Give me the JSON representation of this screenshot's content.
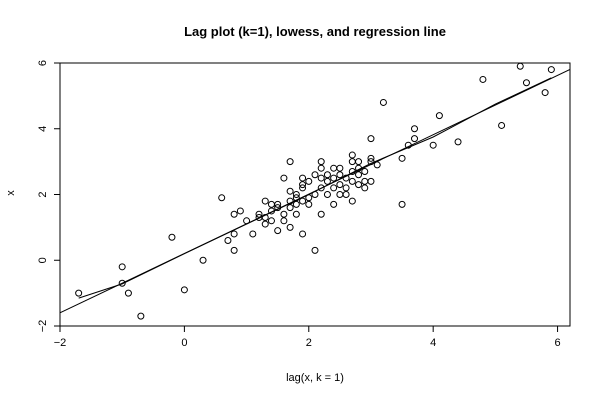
{
  "chart_data": {
    "type": "scatter",
    "title": "Lag plot (k=1), lowess, and regression line",
    "xlabel": "lag(x, k = 1)",
    "ylabel": "x",
    "xlim": [
      -2,
      6.2
    ],
    "ylim": [
      -2,
      6
    ],
    "xticks": [
      -2,
      0,
      2,
      4,
      6
    ],
    "yticks": [
      -2,
      0,
      2,
      4,
      6
    ],
    "grid": false,
    "point_style": "open-circle",
    "points": [
      {
        "x": -1.7,
        "y": -1.0
      },
      {
        "x": -1.0,
        "y": -0.2
      },
      {
        "x": -1.0,
        "y": -0.7
      },
      {
        "x": -0.9,
        "y": -1.0
      },
      {
        "x": -0.7,
        "y": -1.7
      },
      {
        "x": -0.2,
        "y": 0.7
      },
      {
        "x": 0.0,
        "y": -0.9
      },
      {
        "x": 0.3,
        "y": 0.0
      },
      {
        "x": 0.6,
        "y": 1.9
      },
      {
        "x": 0.7,
        "y": 0.6
      },
      {
        "x": 0.8,
        "y": 0.3
      },
      {
        "x": 0.8,
        "y": 0.8
      },
      {
        "x": 0.8,
        "y": 1.4
      },
      {
        "x": 0.9,
        "y": 1.5
      },
      {
        "x": 1.0,
        "y": 1.2
      },
      {
        "x": 1.1,
        "y": 0.8
      },
      {
        "x": 1.2,
        "y": 1.3
      },
      {
        "x": 1.2,
        "y": 1.4
      },
      {
        "x": 1.3,
        "y": 1.1
      },
      {
        "x": 1.3,
        "y": 1.3
      },
      {
        "x": 1.3,
        "y": 1.8
      },
      {
        "x": 1.4,
        "y": 1.2
      },
      {
        "x": 1.4,
        "y": 1.5
      },
      {
        "x": 1.4,
        "y": 1.7
      },
      {
        "x": 1.5,
        "y": 0.9
      },
      {
        "x": 1.5,
        "y": 1.6
      },
      {
        "x": 1.5,
        "y": 1.7
      },
      {
        "x": 1.6,
        "y": 1.2
      },
      {
        "x": 1.6,
        "y": 1.4
      },
      {
        "x": 1.6,
        "y": 2.5
      },
      {
        "x": 1.7,
        "y": 1.0
      },
      {
        "x": 1.7,
        "y": 1.6
      },
      {
        "x": 1.7,
        "y": 1.8
      },
      {
        "x": 1.7,
        "y": 2.1
      },
      {
        "x": 1.7,
        "y": 3.0
      },
      {
        "x": 1.8,
        "y": 1.4
      },
      {
        "x": 1.8,
        "y": 1.7
      },
      {
        "x": 1.8,
        "y": 1.9
      },
      {
        "x": 1.8,
        "y": 2.0
      },
      {
        "x": 1.9,
        "y": 0.8
      },
      {
        "x": 1.9,
        "y": 1.8
      },
      {
        "x": 1.9,
        "y": 2.2
      },
      {
        "x": 1.9,
        "y": 2.3
      },
      {
        "x": 1.9,
        "y": 2.5
      },
      {
        "x": 2.0,
        "y": 1.7
      },
      {
        "x": 2.0,
        "y": 1.9
      },
      {
        "x": 2.0,
        "y": 2.4
      },
      {
        "x": 2.1,
        "y": 0.3
      },
      {
        "x": 2.1,
        "y": 2.0
      },
      {
        "x": 2.1,
        "y": 2.6
      },
      {
        "x": 2.2,
        "y": 1.4
      },
      {
        "x": 2.2,
        "y": 2.2
      },
      {
        "x": 2.2,
        "y": 2.5
      },
      {
        "x": 2.2,
        "y": 2.8
      },
      {
        "x": 2.2,
        "y": 3.0
      },
      {
        "x": 2.3,
        "y": 2.0
      },
      {
        "x": 2.3,
        "y": 2.4
      },
      {
        "x": 2.3,
        "y": 2.6
      },
      {
        "x": 2.4,
        "y": 1.7
      },
      {
        "x": 2.4,
        "y": 2.2
      },
      {
        "x": 2.4,
        "y": 2.5
      },
      {
        "x": 2.4,
        "y": 2.8
      },
      {
        "x": 2.5,
        "y": 2.0
      },
      {
        "x": 2.5,
        "y": 2.3
      },
      {
        "x": 2.5,
        "y": 2.6
      },
      {
        "x": 2.5,
        "y": 2.8
      },
      {
        "x": 2.6,
        "y": 2.0
      },
      {
        "x": 2.6,
        "y": 2.2
      },
      {
        "x": 2.6,
        "y": 2.5
      },
      {
        "x": 2.7,
        "y": 1.8
      },
      {
        "x": 2.7,
        "y": 2.4
      },
      {
        "x": 2.7,
        "y": 2.7
      },
      {
        "x": 2.7,
        "y": 3.0
      },
      {
        "x": 2.7,
        "y": 3.2
      },
      {
        "x": 2.8,
        "y": 2.3
      },
      {
        "x": 2.8,
        "y": 2.6
      },
      {
        "x": 2.8,
        "y": 2.8
      },
      {
        "x": 2.8,
        "y": 3.0
      },
      {
        "x": 2.9,
        "y": 2.2
      },
      {
        "x": 2.9,
        "y": 2.4
      },
      {
        "x": 2.9,
        "y": 2.7
      },
      {
        "x": 3.0,
        "y": 2.4
      },
      {
        "x": 3.0,
        "y": 3.0
      },
      {
        "x": 3.0,
        "y": 3.1
      },
      {
        "x": 3.0,
        "y": 3.7
      },
      {
        "x": 3.1,
        "y": 2.9
      },
      {
        "x": 3.2,
        "y": 4.8
      },
      {
        "x": 3.5,
        "y": 1.7
      },
      {
        "x": 3.5,
        "y": 3.1
      },
      {
        "x": 3.6,
        "y": 3.5
      },
      {
        "x": 3.7,
        "y": 3.7
      },
      {
        "x": 3.7,
        "y": 4.0
      },
      {
        "x": 4.0,
        "y": 3.5
      },
      {
        "x": 4.1,
        "y": 4.4
      },
      {
        "x": 4.4,
        "y": 3.6
      },
      {
        "x": 4.8,
        "y": 5.5
      },
      {
        "x": 5.1,
        "y": 4.1
      },
      {
        "x": 5.4,
        "y": 5.9
      },
      {
        "x": 5.5,
        "y": 5.4
      },
      {
        "x": 5.8,
        "y": 5.1
      },
      {
        "x": 5.9,
        "y": 5.8
      }
    ],
    "lines": [
      {
        "kind": "regression",
        "from": [
          -2.0,
          -1.6
        ],
        "to": [
          6.25,
          5.85
        ]
      },
      {
        "kind": "lowess",
        "points": [
          [
            -1.7,
            -1.15
          ],
          [
            -1.0,
            -0.72
          ],
          [
            0.0,
            0.2
          ],
          [
            1.0,
            1.1
          ],
          [
            2.0,
            2.0
          ],
          [
            3.0,
            2.95
          ],
          [
            4.0,
            3.75
          ],
          [
            5.0,
            4.75
          ],
          [
            5.9,
            5.55
          ]
        ]
      }
    ]
  }
}
